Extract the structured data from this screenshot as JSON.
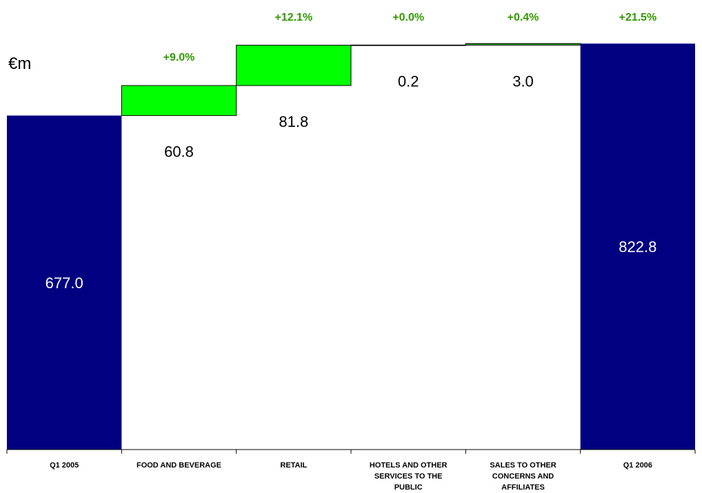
{
  "chart_data": {
    "type": "waterfall",
    "unit_label": "€m",
    "categories": [
      "Q1 2005",
      "FOOD AND BEVERAGE",
      "RETAIL",
      "HOTELS AND OTHER SERVICES TO THE PUBLIC",
      "SALES TO OTHER CONCERNS AND AFFILIATES",
      "Q1 2006"
    ],
    "values": [
      677.0,
      60.8,
      81.8,
      0.2,
      3.0,
      822.8
    ],
    "value_labels": [
      "677.0",
      "60.8",
      "81.8",
      "0.2",
      "3.0",
      "822.8"
    ],
    "bar_kinds": [
      "total",
      "increase",
      "increase",
      "increase",
      "increase",
      "total"
    ],
    "percent_labels": [
      "",
      "+9.0%",
      "+12.1%",
      "+0.0%",
      "+0.4%",
      "+21.5%"
    ],
    "ylim": [
      0,
      900
    ],
    "colors": {
      "total": "#000080",
      "increase": "#00FF00",
      "percent_text": "#339900",
      "total_label": "#FFFFFF",
      "increase_label": "#000000"
    }
  }
}
